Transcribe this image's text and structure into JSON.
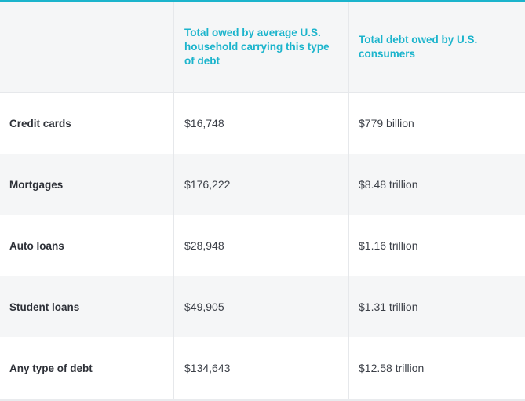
{
  "table": {
    "headers": [
      "",
      "Total owed by average U.S. household carrying this type of debt",
      "Total debt owed by U.S. consumers"
    ],
    "rows": [
      {
        "label": "Credit cards",
        "household": "$16,748",
        "total": "$779 billion"
      },
      {
        "label": "Mortgages",
        "household": "$176,222",
        "total": "$8.48 trillion"
      },
      {
        "label": "Auto loans",
        "household": "$28,948",
        "total": "$1.16 trillion"
      },
      {
        "label": "Student loans",
        "household": "$49,905",
        "total": "$1.31 trillion"
      },
      {
        "label": "Any type of debt",
        "household": "$134,643",
        "total": "$12.58 trillion"
      }
    ]
  },
  "colors": {
    "accent": "#1bb4cc",
    "stripe": "#f5f6f7",
    "text": "#2e3138",
    "divider": "#e6e8eb"
  }
}
